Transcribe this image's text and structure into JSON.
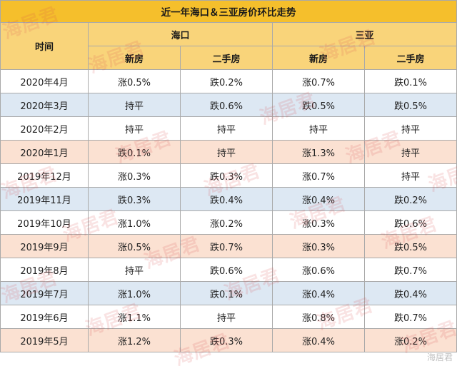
{
  "title": "近一年海口＆三亚房价环比走势",
  "headers": {
    "time": "时间",
    "city1": "海口",
    "city2": "三亚",
    "new": "新房",
    "used": "二手房"
  },
  "rows": [
    {
      "month": "2020年4月",
      "hk_new": "涨0.5%",
      "hk_used": "跌0.2%",
      "sy_new": "涨0.7%",
      "sy_used": "跌0.1%"
    },
    {
      "month": "2020年3月",
      "hk_new": "持平",
      "hk_used": "跌0.6%",
      "sy_new": "跌0.5%",
      "sy_used": "跌0.5%"
    },
    {
      "month": "2020年2月",
      "hk_new": "持平",
      "hk_used": "持平",
      "sy_new": "持平",
      "sy_used": "持平"
    },
    {
      "month": "2020年1月",
      "hk_new": "跌0.1%",
      "hk_used": "持平",
      "sy_new": "涨1.3%",
      "sy_used": "持平"
    },
    {
      "month": "2019年12月",
      "hk_new": "涨0.3%",
      "hk_used": "跌0.3%",
      "sy_new": "涨0.7%",
      "sy_used": "持平"
    },
    {
      "month": "2019年11月",
      "hk_new": "跌0.3%",
      "hk_used": "跌0.4%",
      "sy_new": "涨0.4%",
      "sy_used": "跌0.2%"
    },
    {
      "month": "2019年10月",
      "hk_new": "涨1.0%",
      "hk_used": "涨0.2%",
      "sy_new": "涨0.3%",
      "sy_used": "跌0.6%"
    },
    {
      "month": "2019年9月",
      "hk_new": "涨0.5%",
      "hk_used": "跌0.7%",
      "sy_new": "涨0.3%",
      "sy_used": "跌0.5%"
    },
    {
      "month": "2019年8月",
      "hk_new": "持平",
      "hk_used": "跌0.6%",
      "sy_new": "涨0.6%",
      "sy_used": "跌0.7%"
    },
    {
      "month": "2019年7月",
      "hk_new": "涨1.0%",
      "hk_used": "跌0.1%",
      "sy_new": "涨0.4%",
      "sy_used": "跌0.4%"
    },
    {
      "month": "2019年6月",
      "hk_new": "涨1.1%",
      "hk_used": "持平",
      "sy_new": "涨0.8%",
      "sy_used": "跌0.7%"
    },
    {
      "month": "2019年5月",
      "hk_new": "涨1.2%",
      "hk_used": "跌0.3%",
      "sy_new": "涨0.4%",
      "sy_used": "涨0.2%"
    }
  ],
  "watermark": "海居君",
  "colors": {
    "title_bg": "#f5bf2c",
    "header_bg": "#f9d47a",
    "row_blue": "#dde8f3",
    "row_peach": "#fbe1d2",
    "border": "#a9a9a9"
  }
}
